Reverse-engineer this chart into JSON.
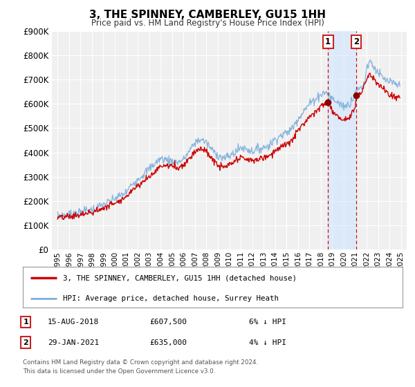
{
  "title": "3, THE SPINNEY, CAMBERLEY, GU15 1HH",
  "subtitle": "Price paid vs. HM Land Registry's House Price Index (HPI)",
  "ylim": [
    0,
    900000
  ],
  "yticks": [
    0,
    100000,
    200000,
    300000,
    400000,
    500000,
    600000,
    700000,
    800000,
    900000
  ],
  "ytick_labels": [
    "£0",
    "£100K",
    "£200K",
    "£300K",
    "£400K",
    "£500K",
    "£600K",
    "£700K",
    "£800K",
    "£900K"
  ],
  "xlim_start": 1994.5,
  "xlim_end": 2025.5,
  "sale1_x": 2018.622,
  "sale1_y": 607500,
  "sale1_label": "1",
  "sale1_date": "15-AUG-2018",
  "sale1_price": "£607,500",
  "sale1_hpi": "6% ↓ HPI",
  "sale2_x": 2021.082,
  "sale2_y": 635000,
  "sale2_label": "2",
  "sale2_date": "29-JAN-2021",
  "sale2_price": "£635,000",
  "sale2_hpi": "4% ↓ HPI",
  "red_color": "#cc0000",
  "blue_color": "#7aaddc",
  "background_color": "#f0f0f0",
  "grid_color": "#ffffff",
  "legend1": "3, THE SPINNEY, CAMBERLEY, GU15 1HH (detached house)",
  "legend2": "HPI: Average price, detached house, Surrey Heath",
  "footer1": "Contains HM Land Registry data © Crown copyright and database right 2024.",
  "footer2": "This data is licensed under the Open Government Licence v3.0."
}
